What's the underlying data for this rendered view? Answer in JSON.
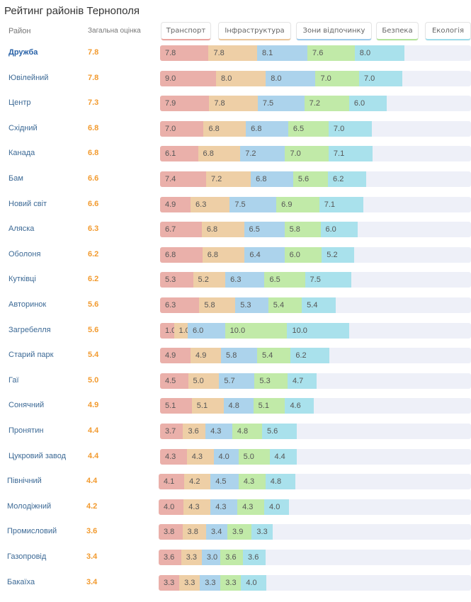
{
  "title": "Рейтинг районів Тернополя",
  "header": {
    "district_label": "Район",
    "overall_label": "Загальна оцінка"
  },
  "categories": [
    {
      "label": "Транспорт",
      "color": "#eab0aa",
      "accent": "#eaa6a0"
    },
    {
      "label": "Інфраструктура",
      "color": "#eecfa6",
      "accent": "#ecc89c"
    },
    {
      "label": "Зони відпочинку",
      "color": "#acd3ec",
      "accent": "#9ccbeb"
    },
    {
      "label": "Безпека",
      "color": "#c1eaa8",
      "accent": "#b3e49a"
    },
    {
      "label": "Екологія",
      "color": "#a9e1ec",
      "accent": "#9fdcea"
    }
  ],
  "chart_data": {
    "type": "bar",
    "stacked": true,
    "orientation": "horizontal",
    "title": "Рейтинг районів Тернополя",
    "xlabel": "",
    "ylabel": "Район",
    "legend": [
      "Транспорт",
      "Інфраструктура",
      "Зони відпочинку",
      "Безпека",
      "Екологія"
    ],
    "legend_position": "top",
    "xlim": [
      0,
      50
    ],
    "categories": [
      "Дружба",
      "Ювілейний",
      "Центр",
      "Східний",
      "Канада",
      "Бам",
      "Новий світ",
      "Аляска",
      "Оболоня",
      "Кутківці",
      "Авторинок",
      "Загребелля",
      "Старий парк",
      "Гаї",
      "Сонячний",
      "Пронятин",
      "Цукровий завод",
      "Північний",
      "Молодіжний",
      "Промисловий",
      "Газопровід",
      "Бакаїха"
    ],
    "overall": [
      "7.8",
      "7.8",
      "7.3",
      "6.8",
      "6.8",
      "6.6",
      "6.6",
      "6.3",
      "6.2",
      "6.2",
      "5.6",
      "5.6",
      "5.4",
      "5.0",
      "4.9",
      "4.4",
      "4.4",
      "4.4",
      "4.2",
      "3.6",
      "3.4",
      "3.4"
    ],
    "series": [
      {
        "name": "Транспорт",
        "values": [
          "7.8",
          "9.0",
          "7.9",
          "7.0",
          "6.1",
          "7.4",
          "4.9",
          "6.7",
          "6.8",
          "5.3",
          "6.3",
          "1.0",
          "4.9",
          "4.5",
          "5.1",
          "3.7",
          "4.3",
          "4.1",
          "4.0",
          "3.8",
          "3.6",
          "3.3"
        ]
      },
      {
        "name": "Інфраструктура",
        "values": [
          "7.8",
          "8.0",
          "7.8",
          "6.8",
          "6.8",
          "7.2",
          "6.3",
          "6.8",
          "6.8",
          "5.2",
          "5.8",
          "1.0",
          "4.9",
          "5.0",
          "5.1",
          "3.6",
          "4.3",
          "4.2",
          "4.3",
          "3.8",
          "3.3",
          "3.3"
        ]
      },
      {
        "name": "Зони відпочинку",
        "values": [
          "8.1",
          "8.0",
          "7.5",
          "6.8",
          "7.2",
          "6.8",
          "7.5",
          "6.5",
          "6.4",
          "6.3",
          "5.3",
          "6.0",
          "5.8",
          "5.7",
          "4.8",
          "4.3",
          "4.0",
          "4.5",
          "4.3",
          "3.4",
          "3.0",
          "3.3"
        ]
      },
      {
        "name": "Безпека",
        "values": [
          "7.6",
          "7.0",
          "7.2",
          "6.5",
          "7.0",
          "5.6",
          "6.9",
          "5.8",
          "6.0",
          "6.5",
          "5.4",
          "10.0",
          "5.4",
          "5.3",
          "5.1",
          "4.8",
          "5.0",
          "4.3",
          "4.3",
          "3.9",
          "3.6",
          "3.3"
        ]
      },
      {
        "name": "Екологія",
        "values": [
          "8.0",
          "7.0",
          "6.0",
          "7.0",
          "7.1",
          "6.2",
          "7.1",
          "6.0",
          "5.2",
          "7.5",
          "5.4",
          "10.0",
          "6.2",
          "4.7",
          "4.6",
          "5.6",
          "4.4",
          "4.8",
          "4.0",
          "3.3",
          "3.6",
          "4.0"
        ]
      }
    ]
  }
}
